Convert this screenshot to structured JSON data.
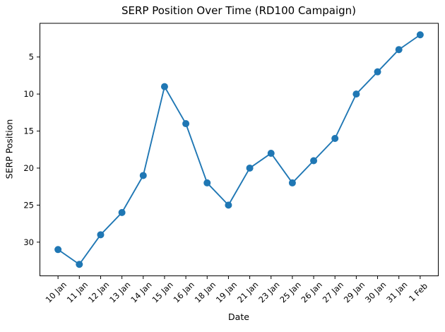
{
  "chart_data": {
    "type": "line",
    "title": "SERP Position Over Time (RD100 Campaign)",
    "xlabel": "Date",
    "ylabel": "SERP Position",
    "categories": [
      "10 Jan",
      "11 Jan",
      "12 Jan",
      "13 Jan",
      "14 Jan",
      "15 Jan",
      "16 Jan",
      "18 Jan",
      "19 Jan",
      "21 Jan",
      "23 Jan",
      "25 Jan",
      "26 Jan",
      "27 Jan",
      "29 Jan",
      "30 Jan",
      "31 Jan",
      "1 Feb"
    ],
    "series": [
      {
        "name": "SERP Position",
        "values": [
          31,
          33,
          29,
          26,
          21,
          9,
          14,
          22,
          25,
          20,
          18,
          22,
          19,
          16,
          10,
          7,
          4,
          2
        ]
      }
    ],
    "y_ticks": [
      5,
      10,
      15,
      20,
      25,
      30
    ],
    "ylim": [
      0.45,
      34.55
    ],
    "y_axis_inverted": true,
    "x_margin": 0.85,
    "x_tick_rotation_deg": 45,
    "grid": false,
    "legend": null,
    "line_color": "#1f77b4",
    "marker": "circle",
    "text_color": "#000000",
    "axis_color": "#000000",
    "background_color": "#ffffff"
  }
}
